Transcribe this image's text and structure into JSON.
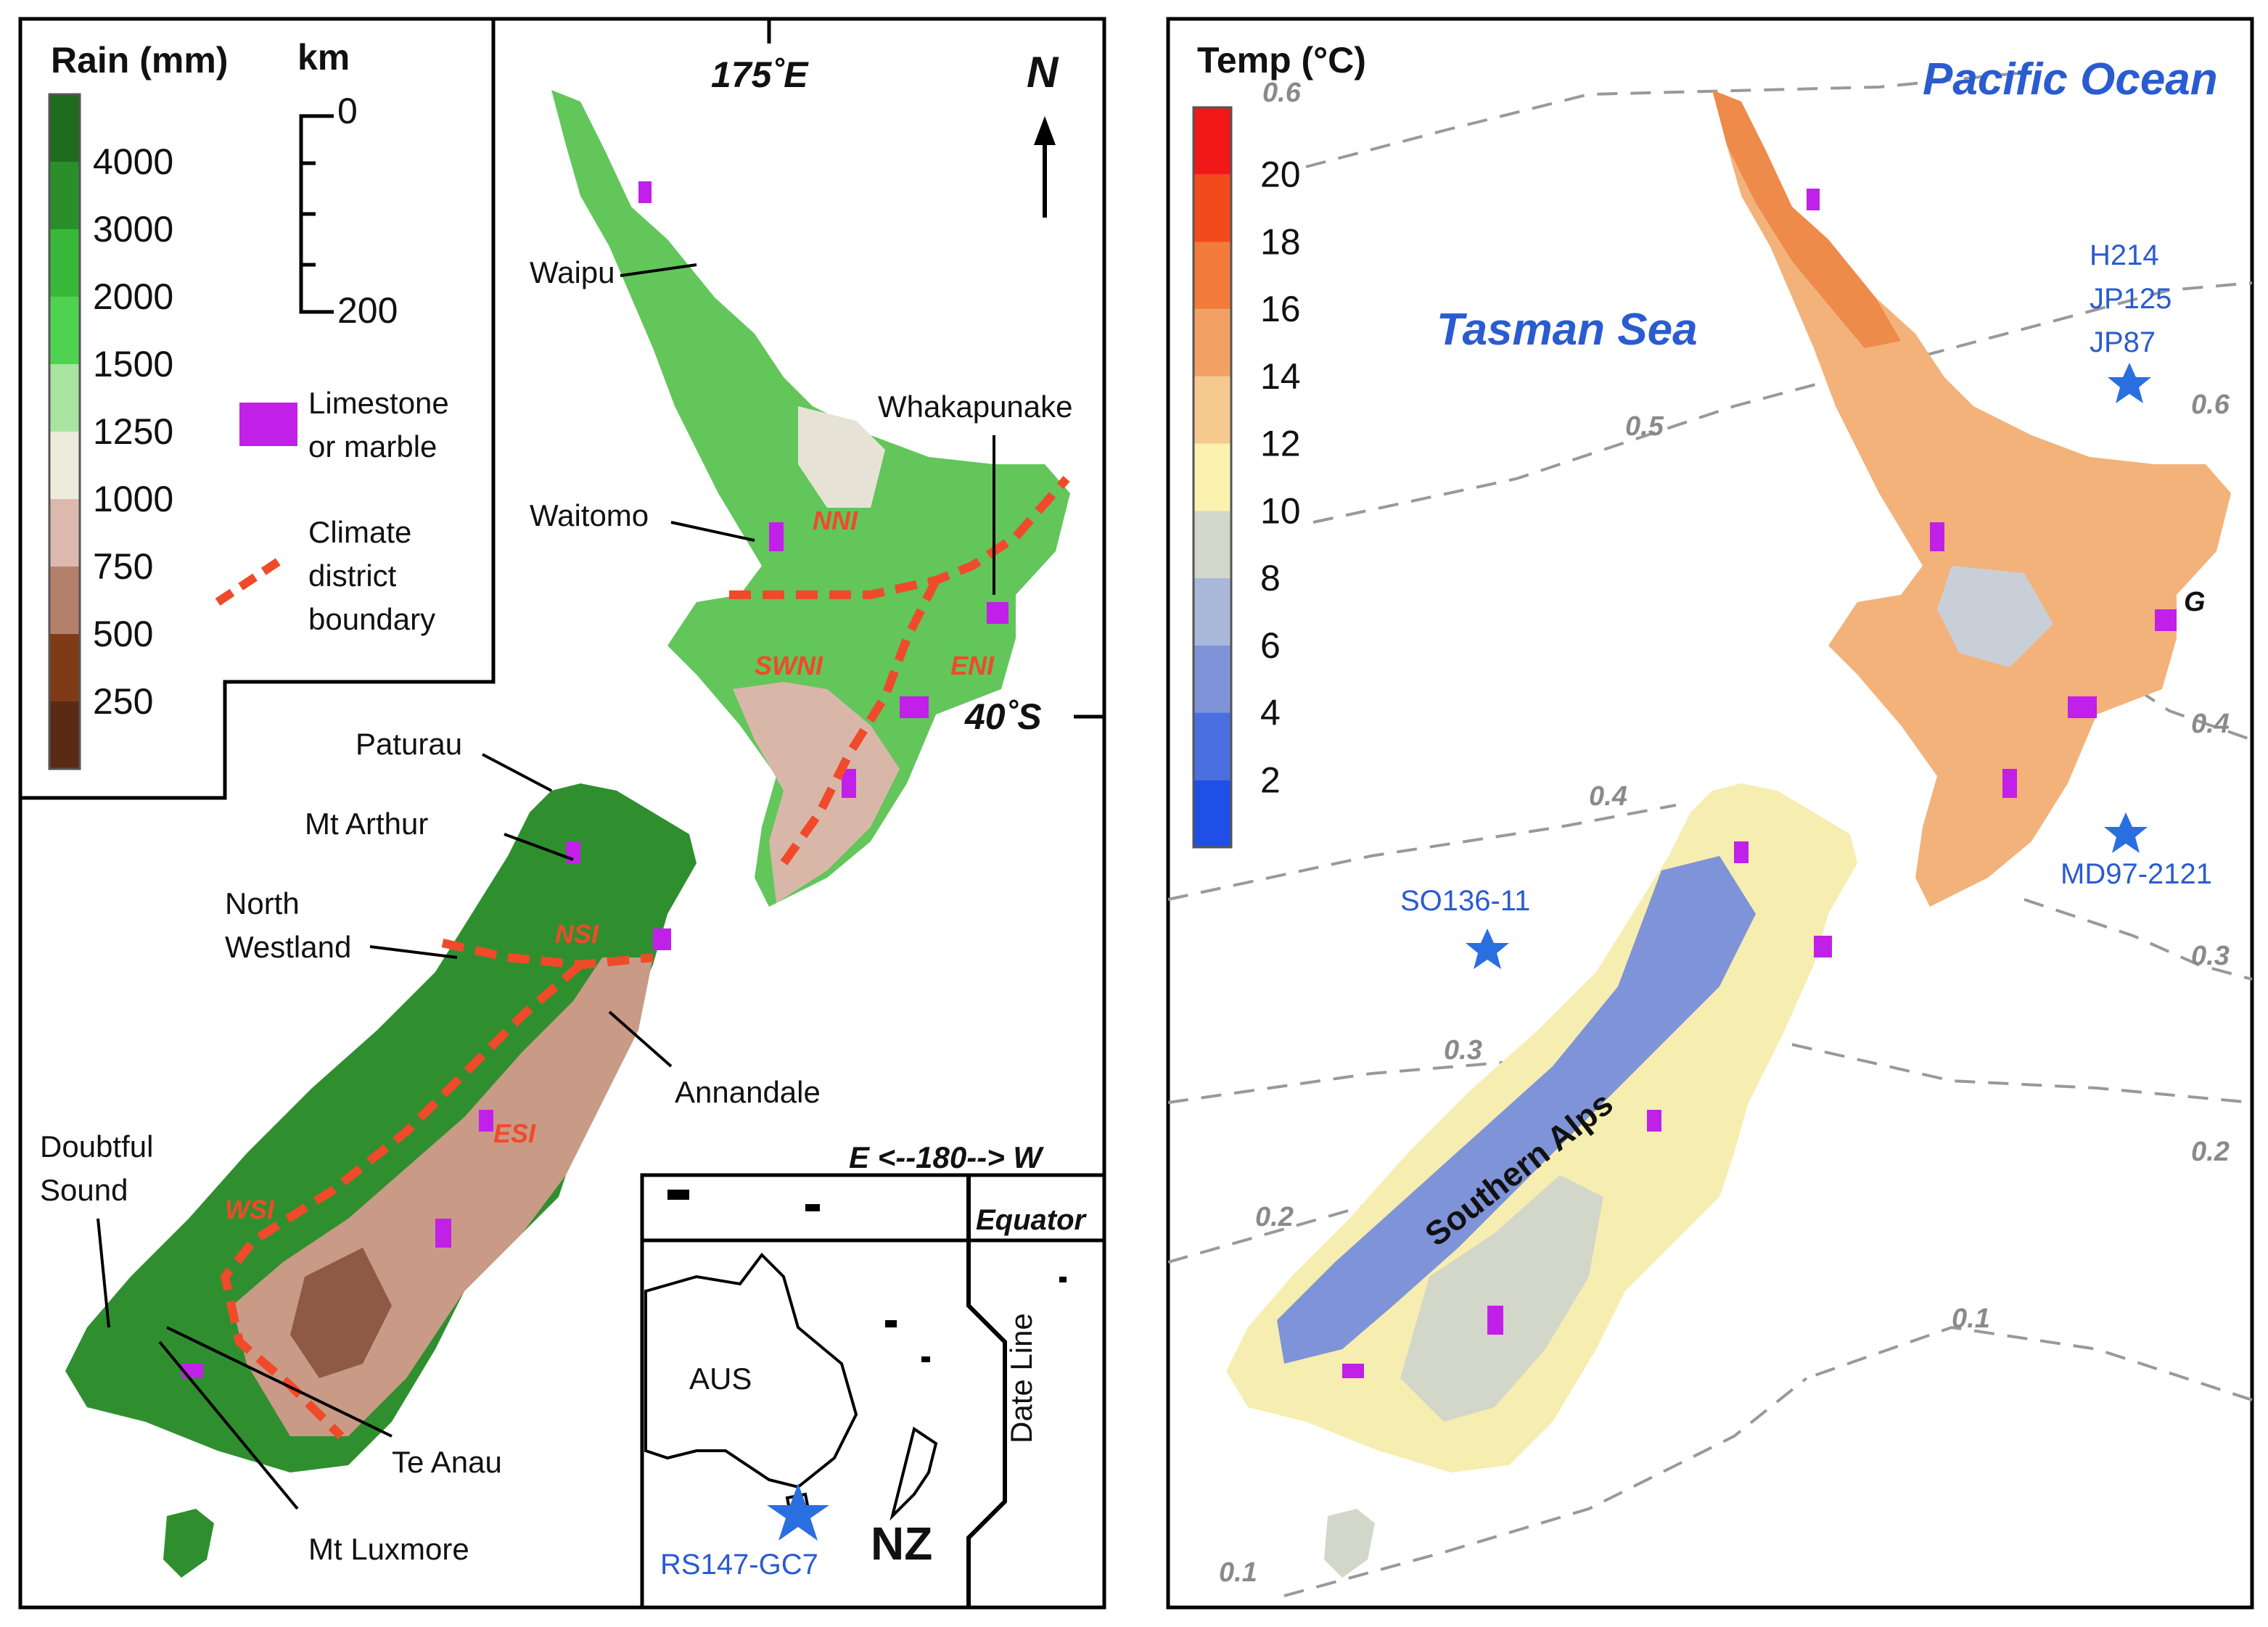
{
  "left_map": {
    "rain_legend": {
      "title": "Rain (mm)",
      "values": [
        "4000",
        "3000",
        "2000",
        "1500",
        "1250",
        "1000",
        "750",
        "500",
        "250"
      ],
      "colors": [
        "#1f6b1f",
        "#2a8f2a",
        "#38b838",
        "#4fd24f",
        "#a9e3a0",
        "#ececdc",
        "#dcb9ad",
        "#b5806a",
        "#7f3b18",
        "#5a2a14"
      ]
    },
    "scale_bar": {
      "title": "km",
      "top": "0",
      "bottom": "200"
    },
    "symbols": {
      "limestone": "Limestone or marble",
      "limestone_lines": [
        "Limestone",
        "or marble"
      ],
      "climate_lines": [
        "Climate",
        "district",
        "boundary"
      ],
      "limestone_color": "#c020e8",
      "boundary_color": "#f04a2a"
    },
    "north_arrow": "N",
    "longitude_label": "175˚E",
    "latitude_label": "40˚S",
    "place_labels": {
      "waipu": "Waipu",
      "whakapunake": "Whakapunake",
      "waitomo": "Waitomo",
      "paturau": "Paturau",
      "mt_arthur": "Mt Arthur",
      "north_westland": [
        "North",
        "Westland"
      ],
      "annandale": "Annandale",
      "doubtful_sound": [
        "Doubtful",
        "Sound"
      ],
      "te_anau": "Te Anau",
      "mt_luxmore": "Mt Luxmore"
    },
    "district_labels": {
      "nni": "NNI",
      "swni": "SWNI",
      "eni": "ENI",
      "nsi": "NSI",
      "esi": "ESI",
      "wsi": "WSI"
    },
    "inset": {
      "header": "E  <--180-->  W",
      "equator": "Equator",
      "date_line": "Date Line",
      "aus": "AUS",
      "nz": "NZ",
      "site": "RS147-GC7"
    }
  },
  "right_map": {
    "temp_legend": {
      "title": "Temp (°C)",
      "values": [
        "20",
        "18",
        "16",
        "14",
        "12",
        "10",
        "8",
        "6",
        "4",
        "2"
      ],
      "colors": [
        "#f01818",
        "#f24a1c",
        "#f27a3a",
        "#f3a064",
        "#f6c98e",
        "#fbf2b0",
        "#d3d7c9",
        "#a9b7d9",
        "#7f93d8",
        "#4a6fe0",
        "#1f4fe6"
      ]
    },
    "ocean_labels": {
      "pacific": "Pacific Ocean",
      "tasman": "Tasman Sea"
    },
    "sites": {
      "h214_lines": [
        "H214",
        "JP125",
        "JP87"
      ],
      "md97": "MD97-2121",
      "so136": "SO136-11"
    },
    "region_labels": {
      "southern_alps": "Southern Alps",
      "g": "G"
    },
    "contours": [
      "0.6",
      "0.5",
      "0.6",
      "0.4",
      "0.4",
      "0.3",
      "0.3",
      "0.2",
      "0.2",
      "0.1",
      "0.1"
    ]
  }
}
